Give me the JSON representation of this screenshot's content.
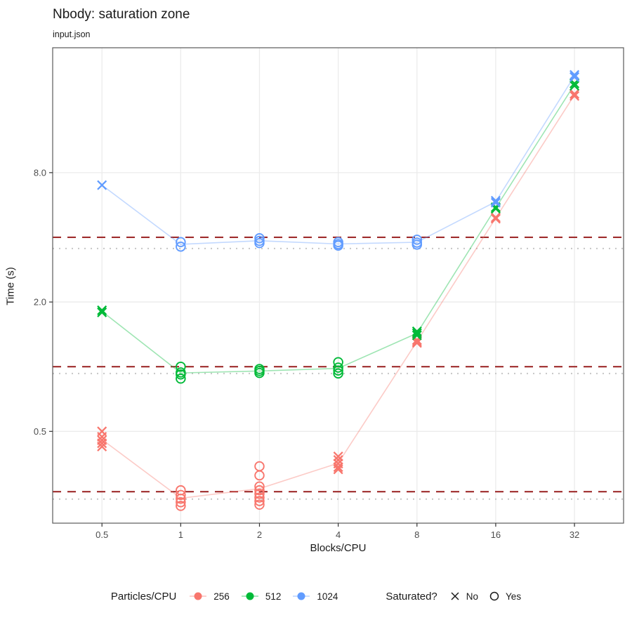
{
  "header": {
    "title": "Nbody: saturation zone",
    "subtitle": "input.json"
  },
  "chart_data": {
    "type": "scatter",
    "title": "Nbody: saturation zone",
    "subtitle": "input.json",
    "xlabel": "Blocks/CPU",
    "ylabel": "Time (s)",
    "x_scale": "log2",
    "y_scale": "log10",
    "x_domain": [
      0.324,
      49.3
    ],
    "y_domain": [
      0.187,
      30.5
    ],
    "x_ticks": [
      {
        "v": 0.5,
        "label": "0.5"
      },
      {
        "v": 1,
        "label": "1"
      },
      {
        "v": 2,
        "label": "2"
      },
      {
        "v": 4,
        "label": "4"
      },
      {
        "v": 8,
        "label": "8"
      },
      {
        "v": 16,
        "label": "16"
      },
      {
        "v": 32,
        "label": "32"
      }
    ],
    "y_ticks": [
      {
        "v": 0.5,
        "label": "0.5"
      },
      {
        "v": 2.0,
        "label": "2.0"
      },
      {
        "v": 8.0,
        "label": "8.0"
      }
    ],
    "grid": {
      "color": "#ebebeb",
      "major_only": true
    },
    "saturation_lines": [
      {
        "series": "1024",
        "dashed_threshold": 4.0,
        "dotted_baseline": 3.55
      },
      {
        "series": "512",
        "dashed_threshold": 1.0,
        "dotted_baseline": 0.93
      },
      {
        "series": "256",
        "dashed_threshold": 0.262,
        "dotted_baseline": 0.242
      }
    ],
    "line_styles": {
      "dashed_color": "#9f2d2d",
      "dotted_color": "#c6c6c6"
    },
    "series": [
      {
        "name": "256",
        "color": "#f8766d",
        "groups": [
          {
            "x": 0.5,
            "saturated": false,
            "times": [
              0.5,
              0.472,
              0.455,
              0.44,
              0.425
            ]
          },
          {
            "x": 1,
            "saturated": true,
            "times": [
              0.266,
              0.253,
              0.243,
              0.234,
              0.225
            ]
          },
          {
            "x": 2,
            "saturated": true,
            "times": [
              0.344,
              0.312,
              0.277,
              0.266,
              0.256,
              0.246,
              0.237,
              0.228
            ]
          },
          {
            "x": 4,
            "saturated": false,
            "times": [
              0.382,
              0.368,
              0.354,
              0.341,
              0.333
            ]
          },
          {
            "x": 8,
            "saturated": false,
            "times": [
              1.33,
              1.31,
              1.29
            ]
          },
          {
            "x": 16,
            "saturated": false,
            "times": [
              4.95,
              4.88
            ]
          },
          {
            "x": 32,
            "saturated": false,
            "times": [
              18.6,
              18.2
            ]
          }
        ]
      },
      {
        "name": "512",
        "color": "#00ba38",
        "groups": [
          {
            "x": 0.5,
            "saturated": false,
            "times": [
              1.83,
              1.79
            ]
          },
          {
            "x": 1,
            "saturated": true,
            "times": [
              1.0,
              0.94,
              0.92,
              0.88
            ]
          },
          {
            "x": 2,
            "saturated": true,
            "times": [
              0.975,
              0.955,
              0.935
            ]
          },
          {
            "x": 4,
            "saturated": true,
            "times": [
              1.05,
              0.99,
              0.96,
              0.93
            ]
          },
          {
            "x": 8,
            "saturated": false,
            "times": [
              1.46,
              1.43,
              1.4
            ]
          },
          {
            "x": 16,
            "saturated": false,
            "times": [
              5.52,
              5.44
            ]
          },
          {
            "x": 32,
            "saturated": false,
            "times": [
              20.8,
              20.3
            ]
          }
        ]
      },
      {
        "name": "1024",
        "color": "#619cff",
        "groups": [
          {
            "x": 0.5,
            "saturated": false,
            "times": [
              7.0
            ]
          },
          {
            "x": 1,
            "saturated": true,
            "times": [
              3.8,
              3.62
            ]
          },
          {
            "x": 2,
            "saturated": true,
            "times": [
              3.96,
              3.85,
              3.76
            ]
          },
          {
            "x": 4,
            "saturated": true,
            "times": [
              3.8,
              3.72,
              3.66
            ]
          },
          {
            "x": 8,
            "saturated": true,
            "times": [
              3.9,
              3.78,
              3.7
            ]
          },
          {
            "x": 16,
            "saturated": false,
            "times": [
              5.92,
              5.8
            ]
          },
          {
            "x": 32,
            "saturated": false,
            "times": [
              22.8,
              22.3
            ]
          }
        ]
      }
    ]
  },
  "legend": {
    "series_title": "Particles/CPU",
    "series": [
      {
        "label": "256",
        "color": "#f8766d"
      },
      {
        "label": "512",
        "color": "#00ba38"
      },
      {
        "label": "1024",
        "color": "#619cff"
      }
    ],
    "shape_title": "Saturated?",
    "shapes": [
      {
        "glyph": "x",
        "label": "No"
      },
      {
        "glyph": "circle",
        "label": "Yes"
      }
    ]
  }
}
